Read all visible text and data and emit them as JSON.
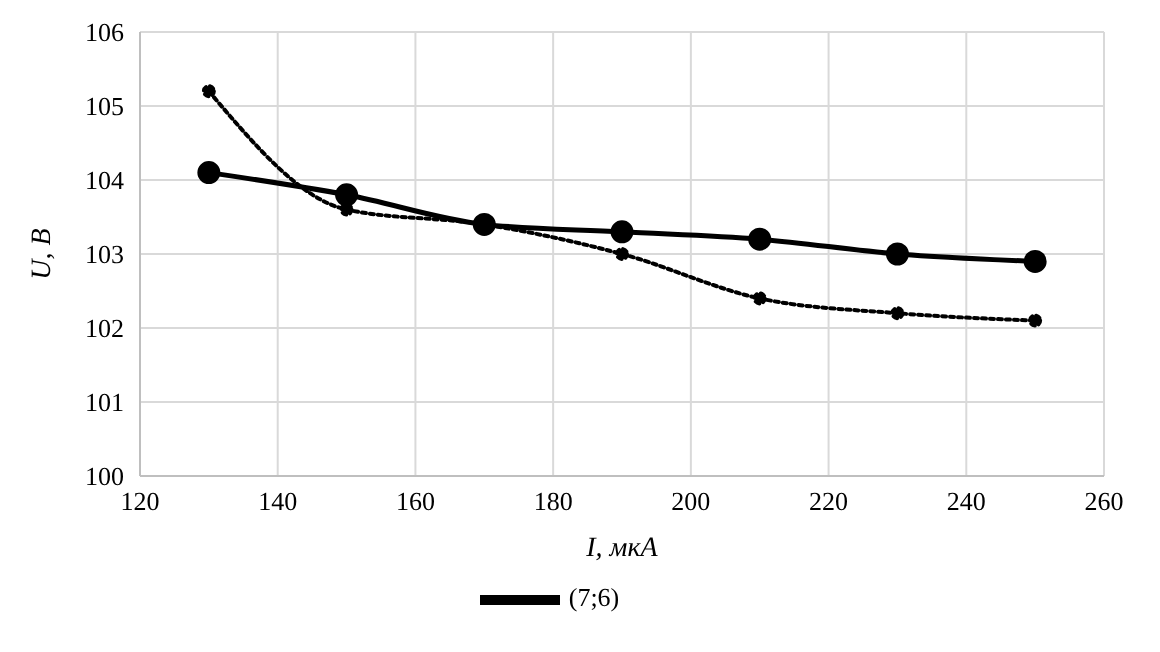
{
  "chart_data": {
    "type": "line",
    "xlabel": "I, мкА",
    "ylabel": "U, В",
    "x": [
      130,
      150,
      170,
      190,
      210,
      230,
      250
    ],
    "series": [
      {
        "name": "(7;6)",
        "color": "#000000",
        "line_style": "solid",
        "values": [
          104.1,
          103.8,
          103.4,
          103.3,
          103.2,
          103.0,
          102.9
        ]
      },
      {
        "color": "#000000",
        "line_style": "dotted",
        "values": [
          105.2,
          103.6,
          103.4,
          103.0,
          102.4,
          102.2,
          102.1
        ]
      }
    ],
    "xlim": [
      120,
      260
    ],
    "xticks": [
      120,
      140,
      160,
      180,
      200,
      220,
      240,
      260
    ],
    "ylim": [
      100,
      106
    ],
    "yticks": [
      100,
      101,
      102,
      103,
      104,
      105,
      106
    ],
    "grid": true,
    "legend": "bottom",
    "marker": "circle"
  }
}
